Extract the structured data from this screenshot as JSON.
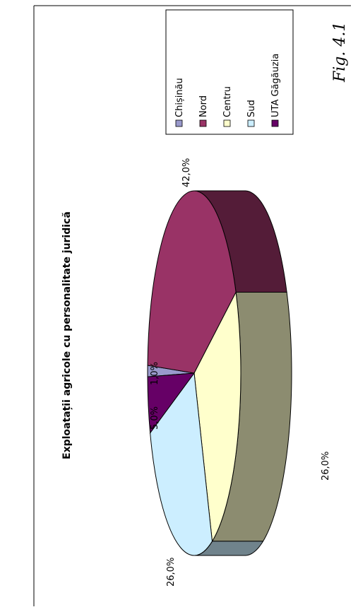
{
  "figure_label": "Fig. 4.1",
  "chart_data": {
    "type": "pie",
    "title": "Exploatații agricole cu personalitate juridică",
    "categories": [
      "Chișinău",
      "Nord",
      "Centru",
      "Sud",
      "UTA Găgăuzia"
    ],
    "values": [
      1.0,
      42.0,
      26.0,
      26.0,
      5.0
    ],
    "value_labels": [
      "1,0%",
      "42,0%",
      "26,0%",
      "26,0%",
      "5,0%"
    ],
    "unit": "%",
    "legend_position": "right",
    "three_d": true,
    "colors": {
      "Chișinău": "#9999cc",
      "Nord": "#993366",
      "Centru": "#ffffcc",
      "Sud": "#cceeff",
      "UTA Găgăuzia": "#660066"
    }
  }
}
